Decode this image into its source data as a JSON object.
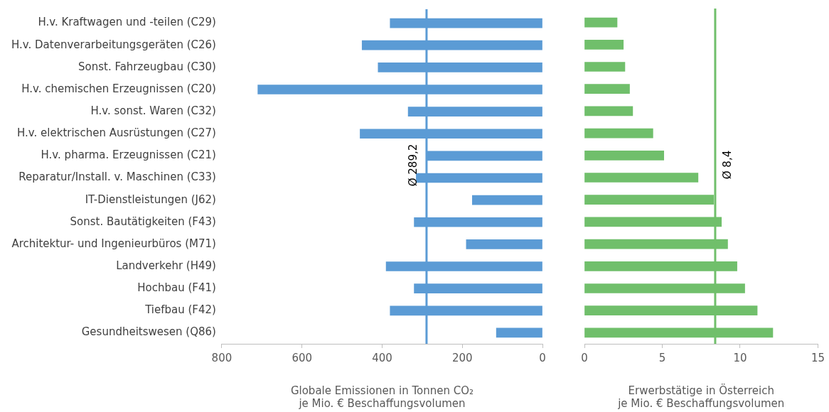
{
  "chart_data": [
    {
      "type": "bar",
      "orientation": "horizontal",
      "categories": [
        "H.v. Kraftwagen und -teilen (C29)",
        "H.v. Datenverarbeitungsgeräten (C26)",
        "Sonst. Fahrzeugbau (C30)",
        "H.v. chemischen Erzeugnissen (C20)",
        "H.v. sonst. Waren (C32)",
        "H.v. elektrischen Ausrüstungen (C27)",
        "H.v. pharma. Erzeugnissen (C21)",
        "Reparatur/Install. v. Maschinen (C33)",
        "IT-Dienstleistungen (J62)",
        "Sonst. Bautätigkeiten (F43)",
        "Architektur- und Ingenieurbüros (M71)",
        "Landverkehr (H49)",
        "Hochbau (F41)",
        "Tiefbau (F42)",
        "Gesundheitswesen (Q86)"
      ],
      "values": [
        380,
        450,
        410,
        710,
        335,
        455,
        290,
        315,
        175,
        320,
        190,
        390,
        320,
        380,
        115
      ],
      "color": "#5b9bd5",
      "xlim": [
        800,
        0
      ],
      "xticks": [
        800,
        600,
        400,
        200,
        0
      ],
      "xlabel": "Globale Emissionen in Tonnen CO₂\nje Mio. € Beschaffungsvolumen",
      "grid": false,
      "ref_lines": [
        {
          "axis": "x",
          "value": 289.2,
          "label": "Ø 289,2",
          "color": "#5b9bd5"
        }
      ]
    },
    {
      "type": "bar",
      "orientation": "horizontal",
      "categories": [
        null,
        null,
        null,
        null,
        null,
        null,
        null,
        null,
        null,
        null,
        null,
        null,
        null,
        null,
        null
      ],
      "values": [
        2.1,
        2.5,
        2.6,
        2.9,
        3.1,
        4.4,
        5.1,
        7.3,
        8.3,
        8.8,
        9.2,
        9.8,
        10.3,
        11.1,
        12.1
      ],
      "color": "#70bf6b",
      "xlim": [
        0,
        15
      ],
      "xticks": [
        0,
        5,
        10,
        15
      ],
      "xlabel": "Erwerbstätige in Österreich\nje Mio. € Beschaffungsvolumen",
      "grid": false,
      "tick_labels": "x",
      "ref_lines": [
        {
          "axis": "x",
          "value": 8.4,
          "label": "Ø 8,4",
          "color": "#70bf6b"
        }
      ]
    }
  ]
}
